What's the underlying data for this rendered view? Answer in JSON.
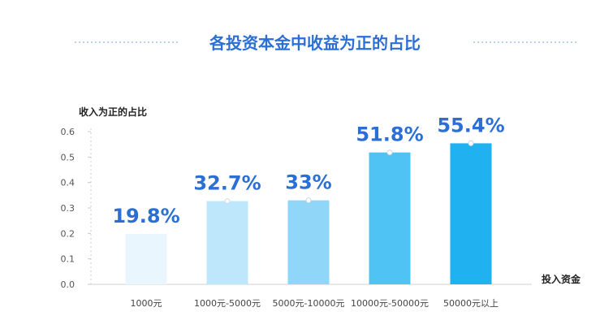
{
  "chart_data": {
    "type": "bar",
    "title": "各投资本金中收益为正的占比",
    "ylabel": "收入为正的占比",
    "xlabel": "投入资金",
    "categories": [
      "1000元",
      "1000元-5000元",
      "5000元-10000元",
      "10000元-50000元",
      "50000元以上"
    ],
    "values": [
      0.198,
      0.327,
      0.33,
      0.518,
      0.554
    ],
    "data_labels": [
      "19.8%",
      "32.7%",
      "33%",
      "51.8%",
      "55.4%"
    ],
    "colors": [
      "#e9f6fd",
      "#bfe7fb",
      "#8fd6f8",
      "#4ec3f4",
      "#1fb1f0"
    ],
    "yticks": [
      "0.0",
      "0.1",
      "0.2",
      "0.3",
      "0.4",
      "0.5",
      "0.6"
    ],
    "ylim": [
      0,
      0.6
    ],
    "label_color": "#2b6fd6",
    "title_color": "#2b6fd6",
    "grid": false,
    "legend": "none"
  }
}
